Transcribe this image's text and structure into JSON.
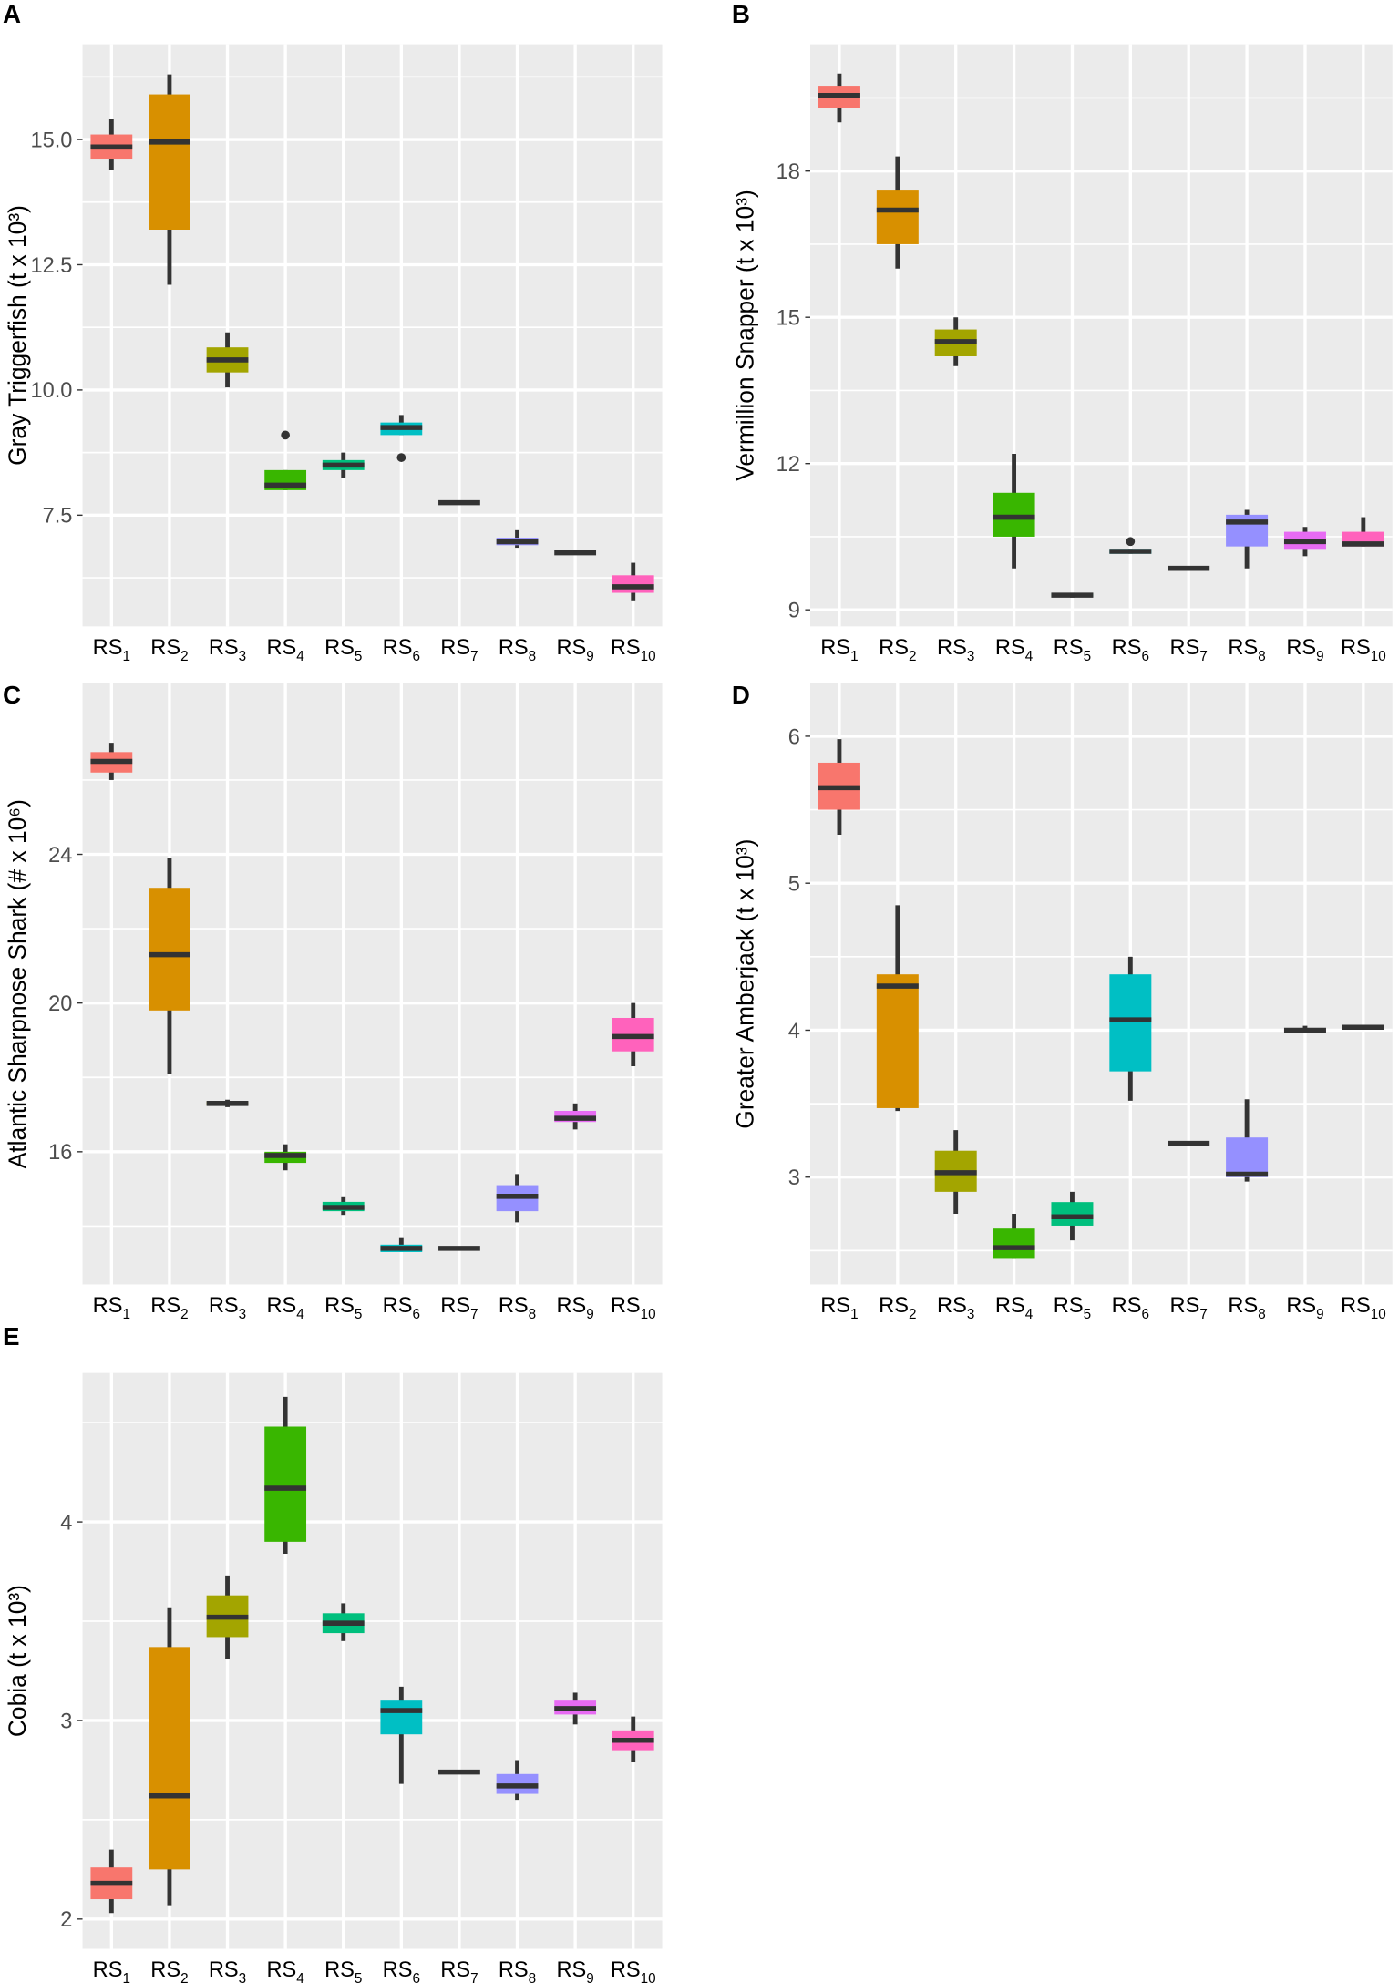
{
  "colors": [
    "#F8766D",
    "#D89000",
    "#A3A500",
    "#39B600",
    "#00BF7D",
    "#00BFC4",
    "#00B0F6",
    "#9590FF",
    "#E76BF3",
    "#FF62BC"
  ],
  "categories": [
    {
      "base": "RS",
      "sub": "1"
    },
    {
      "base": "RS",
      "sub": "2"
    },
    {
      "base": "RS",
      "sub": "3"
    },
    {
      "base": "RS",
      "sub": "4"
    },
    {
      "base": "RS",
      "sub": "5"
    },
    {
      "base": "RS",
      "sub": "6"
    },
    {
      "base": "RS",
      "sub": "7"
    },
    {
      "base": "RS",
      "sub": "8"
    },
    {
      "base": "RS",
      "sub": "9"
    },
    {
      "base": "RS",
      "sub": "10"
    }
  ],
  "chart_data": [
    {
      "type": "box",
      "panel": "A",
      "title": "",
      "ylabel": "Gray Triggerfish (t x 10³)",
      "ylim": [
        5.28,
        16.9
      ],
      "yticks": [
        7.5,
        10.0,
        12.5,
        15.0
      ],
      "ytick_labels": [
        "7.5",
        "10.0",
        "12.5",
        "15.0"
      ],
      "boxes": [
        {
          "low": 14.4,
          "q1": 14.6,
          "median": 14.85,
          "q3": 15.1,
          "high": 15.4,
          "outliers": []
        },
        {
          "low": 12.1,
          "q1": 13.2,
          "median": 14.95,
          "q3": 15.9,
          "high": 16.3,
          "outliers": []
        },
        {
          "low": 10.05,
          "q1": 10.35,
          "median": 10.6,
          "q3": 10.85,
          "high": 11.15,
          "outliers": []
        },
        {
          "low": 8.0,
          "q1": 8.0,
          "median": 8.1,
          "q3": 8.4,
          "high": 8.4,
          "outliers": [
            9.1
          ]
        },
        {
          "low": 8.25,
          "q1": 8.4,
          "median": 8.5,
          "q3": 8.6,
          "high": 8.75,
          "outliers": []
        },
        {
          "low": 9.1,
          "q1": 9.1,
          "median": 9.25,
          "q3": 9.35,
          "high": 9.5,
          "outliers": [
            8.65
          ]
        },
        {
          "low": 7.75,
          "q1": 7.75,
          "median": 7.75,
          "q3": 7.75,
          "high": 7.75,
          "outliers": []
        },
        {
          "low": 6.85,
          "q1": 6.9,
          "median": 6.97,
          "q3": 7.05,
          "high": 7.2,
          "outliers": []
        },
        {
          "low": 6.75,
          "q1": 6.75,
          "median": 6.75,
          "q3": 6.75,
          "high": 6.75,
          "outliers": []
        },
        {
          "low": 5.8,
          "q1": 5.95,
          "median": 6.07,
          "q3": 6.3,
          "high": 6.55,
          "outliers": []
        }
      ]
    },
    {
      "type": "box",
      "panel": "B",
      "title": "",
      "ylabel": "Vermillion Snapper (t x 10³)",
      "ylim": [
        8.66,
        20.6
      ],
      "yticks": [
        9,
        12,
        15,
        18
      ],
      "ytick_labels": [
        "9",
        "12",
        "15",
        "18"
      ],
      "boxes": [
        {
          "low": 19.0,
          "q1": 19.3,
          "median": 19.55,
          "q3": 19.75,
          "high": 20.0,
          "outliers": []
        },
        {
          "low": 16.0,
          "q1": 16.5,
          "median": 17.2,
          "q3": 17.6,
          "high": 18.3,
          "outliers": []
        },
        {
          "low": 14.0,
          "q1": 14.2,
          "median": 14.5,
          "q3": 14.75,
          "high": 15.0,
          "outliers": []
        },
        {
          "low": 9.85,
          "q1": 10.5,
          "median": 10.9,
          "q3": 11.4,
          "high": 12.2,
          "outliers": []
        },
        {
          "low": 9.25,
          "q1": 9.27,
          "median": 9.3,
          "q3": 9.33,
          "high": 9.35,
          "outliers": []
        },
        {
          "low": 10.15,
          "q1": 10.15,
          "median": 10.2,
          "q3": 10.25,
          "high": 10.25,
          "outliers": [
            10.4
          ]
        },
        {
          "low": 9.85,
          "q1": 9.85,
          "median": 9.85,
          "q3": 9.85,
          "high": 9.85,
          "outliers": []
        },
        {
          "low": 9.85,
          "q1": 10.3,
          "median": 10.8,
          "q3": 10.95,
          "high": 11.05,
          "outliers": []
        },
        {
          "low": 10.1,
          "q1": 10.25,
          "median": 10.4,
          "q3": 10.6,
          "high": 10.7,
          "outliers": []
        },
        {
          "low": 10.3,
          "q1": 10.3,
          "median": 10.35,
          "q3": 10.6,
          "high": 10.9,
          "outliers": []
        }
      ]
    },
    {
      "type": "box",
      "panel": "C",
      "title": "",
      "ylabel": "Atlantic Sharpnose Shark (# x 10⁶)",
      "ylim": [
        12.43,
        28.6
      ],
      "yticks": [
        16,
        20,
        24
      ],
      "ytick_labels": [
        "16",
        "20",
        "24"
      ],
      "boxes": [
        {
          "low": 26.0,
          "q1": 26.2,
          "median": 26.5,
          "q3": 26.75,
          "high": 27.0,
          "outliers": []
        },
        {
          "low": 18.1,
          "q1": 19.8,
          "median": 21.3,
          "q3": 23.1,
          "high": 23.9,
          "outliers": []
        },
        {
          "low": 17.2,
          "q1": 17.25,
          "median": 17.3,
          "q3": 17.35,
          "high": 17.4,
          "outliers": []
        },
        {
          "low": 15.5,
          "q1": 15.7,
          "median": 15.9,
          "q3": 16.0,
          "high": 16.2,
          "outliers": []
        },
        {
          "low": 14.3,
          "q1": 14.4,
          "median": 14.5,
          "q3": 14.65,
          "high": 14.8,
          "outliers": []
        },
        {
          "low": 13.3,
          "q1": 13.3,
          "median": 13.4,
          "q3": 13.5,
          "high": 13.7,
          "outliers": []
        },
        {
          "low": 13.4,
          "q1": 13.4,
          "median": 13.4,
          "q3": 13.4,
          "high": 13.4,
          "outliers": []
        },
        {
          "low": 14.1,
          "q1": 14.4,
          "median": 14.8,
          "q3": 15.1,
          "high": 15.4,
          "outliers": []
        },
        {
          "low": 16.6,
          "q1": 16.8,
          "median": 16.9,
          "q3": 17.1,
          "high": 17.3,
          "outliers": []
        },
        {
          "low": 18.3,
          "q1": 18.7,
          "median": 19.1,
          "q3": 19.6,
          "high": 20.0,
          "outliers": []
        }
      ]
    },
    {
      "type": "box",
      "panel": "D",
      "title": "",
      "ylabel": "Greater Amberjack (t x 10³)",
      "ylim": [
        2.27,
        6.36
      ],
      "yticks": [
        3,
        4,
        5,
        6
      ],
      "ytick_labels": [
        "3",
        "4",
        "5",
        "6"
      ],
      "boxes": [
        {
          "low": 5.33,
          "q1": 5.5,
          "median": 5.65,
          "q3": 5.82,
          "high": 5.98,
          "outliers": []
        },
        {
          "low": 3.45,
          "q1": 3.47,
          "median": 4.3,
          "q3": 4.38,
          "high": 4.85,
          "outliers": []
        },
        {
          "low": 2.75,
          "q1": 2.9,
          "median": 3.03,
          "q3": 3.18,
          "high": 3.32,
          "outliers": []
        },
        {
          "low": 2.45,
          "q1": 2.45,
          "median": 2.52,
          "q3": 2.65,
          "high": 2.75,
          "outliers": []
        },
        {
          "low": 2.57,
          "q1": 2.67,
          "median": 2.73,
          "q3": 2.83,
          "high": 2.9,
          "outliers": []
        },
        {
          "low": 3.52,
          "q1": 3.72,
          "median": 4.07,
          "q3": 4.38,
          "high": 4.5,
          "outliers": []
        },
        {
          "low": 3.23,
          "q1": 3.23,
          "median": 3.23,
          "q3": 3.23,
          "high": 3.23,
          "outliers": []
        },
        {
          "low": 2.97,
          "q1": 3.0,
          "median": 3.02,
          "q3": 3.27,
          "high": 3.53,
          "outliers": []
        },
        {
          "low": 3.98,
          "q1": 3.99,
          "median": 4.0,
          "q3": 4.01,
          "high": 4.03,
          "outliers": []
        },
        {
          "low": 4.02,
          "q1": 4.02,
          "median": 4.02,
          "q3": 4.02,
          "high": 4.02,
          "outliers": []
        }
      ]
    },
    {
      "type": "box",
      "panel": "E",
      "title": "",
      "ylabel": "Cobia (t x 10³)",
      "ylim": [
        1.85,
        4.75
      ],
      "yticks": [
        2,
        3,
        4
      ],
      "ytick_labels": [
        "2",
        "3",
        "4"
      ],
      "boxes": [
        {
          "low": 2.03,
          "q1": 2.1,
          "median": 2.18,
          "q3": 2.26,
          "high": 2.35,
          "outliers": []
        },
        {
          "low": 2.07,
          "q1": 2.25,
          "median": 2.62,
          "q3": 3.37,
          "high": 3.57,
          "outliers": []
        },
        {
          "low": 3.31,
          "q1": 3.42,
          "median": 3.52,
          "q3": 3.63,
          "high": 3.73,
          "outliers": []
        },
        {
          "low": 3.84,
          "q1": 3.9,
          "median": 4.17,
          "q3": 4.48,
          "high": 4.63,
          "outliers": []
        },
        {
          "low": 3.4,
          "q1": 3.44,
          "median": 3.49,
          "q3": 3.54,
          "high": 3.59,
          "outliers": []
        },
        {
          "low": 2.68,
          "q1": 2.93,
          "median": 3.05,
          "q3": 3.1,
          "high": 3.17,
          "outliers": []
        },
        {
          "low": 2.74,
          "q1": 2.74,
          "median": 2.74,
          "q3": 2.74,
          "high": 2.74,
          "outliers": []
        },
        {
          "low": 2.6,
          "q1": 2.63,
          "median": 2.67,
          "q3": 2.73,
          "high": 2.8,
          "outliers": []
        },
        {
          "low": 2.98,
          "q1": 3.03,
          "median": 3.06,
          "q3": 3.1,
          "high": 3.14,
          "outliers": []
        },
        {
          "low": 2.79,
          "q1": 2.85,
          "median": 2.9,
          "q3": 2.95,
          "high": 3.02,
          "outliers": []
        }
      ]
    }
  ]
}
